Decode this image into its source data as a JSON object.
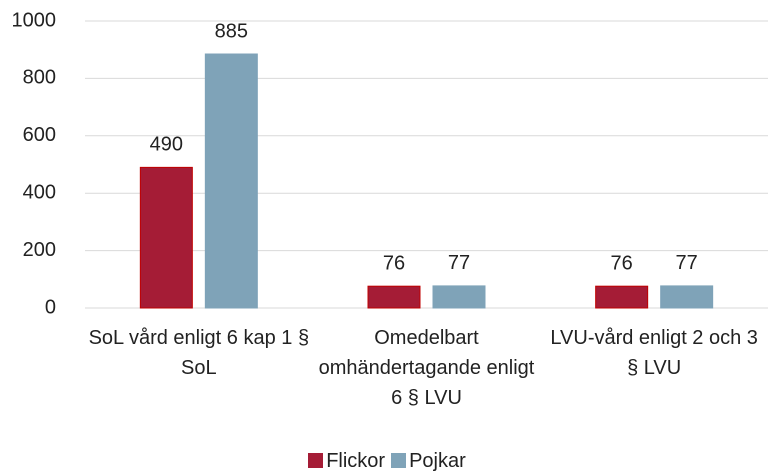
{
  "chart_data": {
    "type": "bar",
    "categories": [
      "SoL vård enligt 6 kap 1 § SoL",
      "Omedelbart omhändertagande enligt 6 § LVU",
      "LVU-vård enligt 2 och 3 § LVU"
    ],
    "series": [
      {
        "name": "Flickor",
        "color": "#a51c36",
        "values": [
          490,
          76,
          76
        ]
      },
      {
        "name": "Pojkar",
        "color": "#7fa3b8",
        "values": [
          885,
          77,
          77
        ]
      }
    ],
    "ylim": [
      0,
      1000
    ],
    "yticks": [
      0,
      200,
      400,
      600,
      800,
      1000
    ],
    "grid": true,
    "legend": "bottom"
  }
}
